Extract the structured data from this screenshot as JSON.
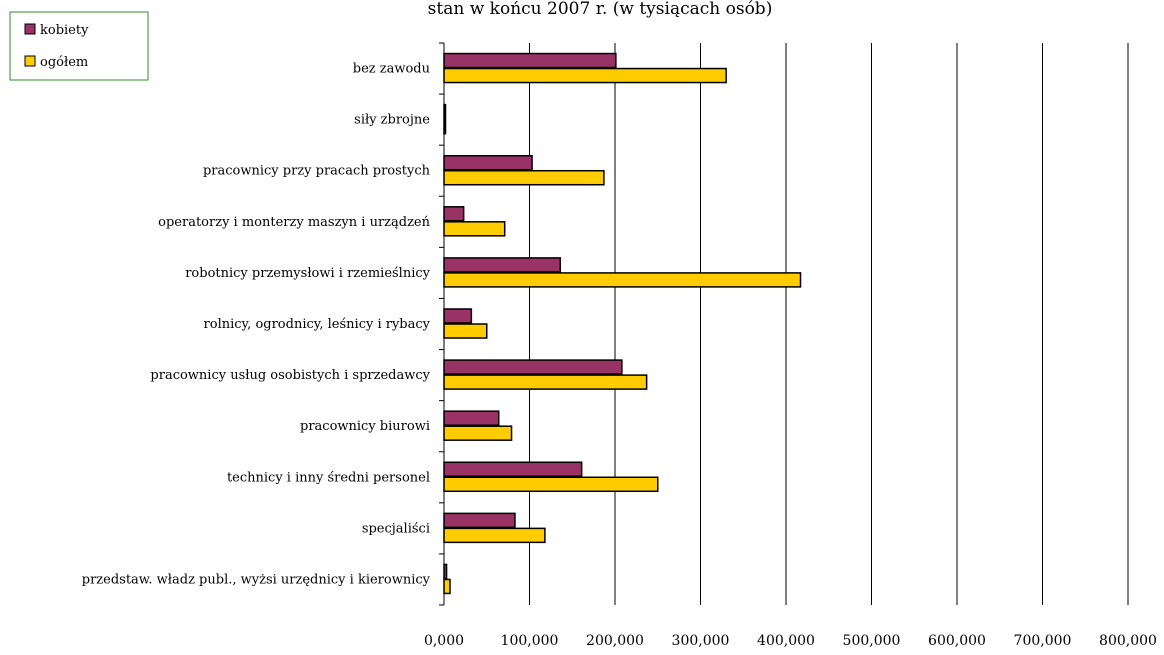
{
  "chart_data": {
    "type": "bar",
    "orientation": "horizontal",
    "title": "stan w końcu 2007 r. (w tysiącach osób)",
    "xlabel": "",
    "ylabel": "",
    "xlim": [
      0,
      800
    ],
    "x_ticks": [
      "0,000",
      "100,000",
      "200,000",
      "300,000",
      "400,000",
      "500,000",
      "600,000",
      "700,000",
      "800,000"
    ],
    "grid": "vertical",
    "legend_position": "top-left",
    "categories": [
      "bez zawodu",
      "siły zbrojne",
      "pracownicy przy pracach prostych",
      "operatorzy i monterzy maszyn i urządzeń",
      "robotnicy przemysłowi i rzemieślnicy",
      "rolnicy, ogrodnicy, leśnicy i rybacy",
      "pracownicy usług osobistych i sprzedawcy",
      "pracownicy biurowi",
      "technicy i inny średni personel",
      "specjaliści",
      "przedstaw. władz publ., wyżsi urzędnicy i kierownicy"
    ],
    "series": [
      {
        "name": "kobiety",
        "color": "#993366",
        "values": [
          201,
          1,
          103,
          23,
          136,
          32,
          208,
          64,
          161,
          83,
          3
        ]
      },
      {
        "name": "ogółem",
        "color": "#ffcc00",
        "values": [
          330,
          1,
          187,
          71,
          417,
          50,
          237,
          79,
          250,
          118,
          7
        ]
      }
    ]
  }
}
